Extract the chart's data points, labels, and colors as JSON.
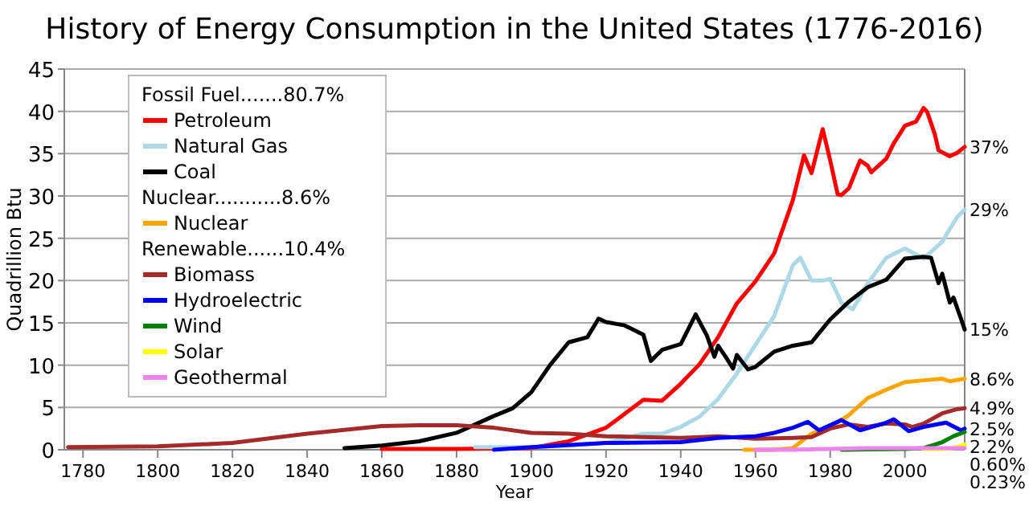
{
  "chart_data": {
    "type": "line",
    "title": "History of Energy Consumption in the United States (1776-2016)",
    "xlabel": "Year",
    "ylabel": "Quadrillion Btu",
    "xlim": [
      1775,
      2016
    ],
    "xticks": [
      1780,
      1800,
      1820,
      1840,
      1860,
      1880,
      1900,
      1920,
      1940,
      1960,
      1980,
      2000
    ],
    "ylim": [
      0,
      45
    ],
    "yticks": [
      0,
      5,
      10,
      15,
      20,
      25,
      30,
      35,
      40,
      45
    ],
    "grid": "y",
    "legend": "top left",
    "marker": "none",
    "line_style": "solid",
    "series": [
      {
        "name": "Petroleum",
        "color": "#ff0000",
        "x": [
          1860,
          1880,
          1900,
          1910,
          1920,
          1930,
          1935,
          1940,
          1945,
          1950,
          1955,
          1960,
          1965,
          1970,
          1973,
          1975,
          1978,
          1980,
          1982,
          1983,
          1985,
          1988,
          1990,
          1991,
          1995,
          1997,
          2000,
          2003,
          2005,
          2006,
          2008,
          2009,
          2012,
          2014,
          2016
        ],
        "values": [
          0.1,
          0.1,
          0.2,
          1,
          2.6,
          5.9,
          5.8,
          7.8,
          10.1,
          13.3,
          17.3,
          19.9,
          23.2,
          29.5,
          34.8,
          32.7,
          37.9,
          34.2,
          30.2,
          30.1,
          30.9,
          34.2,
          33.6,
          32.8,
          34.4,
          36.2,
          38.3,
          38.8,
          40.4,
          39.9,
          37.3,
          35.4,
          34.7,
          35.1,
          35.8
        ]
      },
      {
        "name": "Natural Gas",
        "color": "#add8e6",
        "x": [
          1885,
          1900,
          1910,
          1920,
          1930,
          1935,
          1940,
          1945,
          1950,
          1955,
          1960,
          1965,
          1970,
          1972,
          1975,
          1978,
          1980,
          1983,
          1986,
          1990,
          1995,
          2000,
          2005,
          2008,
          2010,
          2012,
          2014,
          2016
        ],
        "values": [
          0.3,
          0.3,
          0.5,
          0.8,
          1.9,
          1.9,
          2.7,
          3.9,
          6.0,
          9.0,
          12.4,
          15.8,
          21.8,
          22.7,
          20,
          20,
          20.2,
          17.4,
          16.6,
          19.6,
          22.7,
          23.8,
          22.6,
          23.8,
          24.6,
          26.1,
          27.5,
          28.4
        ]
      },
      {
        "name": "Coal",
        "color": "#000000",
        "x": [
          1850,
          1860,
          1870,
          1880,
          1890,
          1895,
          1900,
          1905,
          1910,
          1915,
          1918,
          1920,
          1925,
          1930,
          1932,
          1935,
          1940,
          1944,
          1947,
          1949,
          1950,
          1952,
          1954,
          1955,
          1958,
          1960,
          1965,
          1970,
          1975,
          1980,
          1985,
          1990,
          1995,
          2000,
          2005,
          2007,
          2009,
          2010,
          2012,
          2013,
          2015,
          2016
        ],
        "values": [
          0.2,
          0.5,
          1.0,
          2.0,
          4.0,
          4.9,
          6.8,
          10,
          12.7,
          13.3,
          15.5,
          15.1,
          14.7,
          13.6,
          10.5,
          11.8,
          12.5,
          16,
          13.5,
          11,
          12.3,
          11,
          9.6,
          11.2,
          9.5,
          9.8,
          11.6,
          12.3,
          12.7,
          15.4,
          17.5,
          19.2,
          20.1,
          22.6,
          22.8,
          22.7,
          19.7,
          20.8,
          17.4,
          18,
          15.5,
          14.2
        ]
      },
      {
        "name": "Nuclear",
        "color": "#ffa500",
        "x": [
          1957,
          1965,
          1970,
          1975,
          1980,
          1985,
          1990,
          1995,
          2000,
          2005,
          2010,
          2012,
          2016
        ],
        "values": [
          0,
          0,
          0.2,
          1.9,
          2.7,
          4.1,
          6.1,
          7.1,
          8.0,
          8.2,
          8.4,
          8.1,
          8.4
        ]
      },
      {
        "name": "Biomass",
        "color": "#a52a2a",
        "x": [
          1776,
          1800,
          1820,
          1840,
          1860,
          1870,
          1880,
          1890,
          1900,
          1910,
          1920,
          1930,
          1940,
          1950,
          1960,
          1970,
          1975,
          1980,
          1985,
          1990,
          1995,
          2000,
          2002,
          2005,
          2010,
          2014,
          2016
        ],
        "values": [
          0.3,
          0.4,
          0.8,
          1.9,
          2.8,
          2.9,
          2.9,
          2.6,
          2.0,
          1.9,
          1.6,
          1.5,
          1.4,
          1.6,
          1.3,
          1.4,
          1.5,
          2.5,
          3.0,
          2.7,
          3.1,
          3.0,
          2.7,
          3.1,
          4.3,
          4.8,
          4.9
        ]
      },
      {
        "name": "Hydroelectric",
        "color": "#0000ff",
        "x": [
          1890,
          1900,
          1920,
          1940,
          1950,
          1960,
          1965,
          1970,
          1974,
          1977,
          1983,
          1988,
          1995,
          1997,
          2001,
          2005,
          2011,
          2015,
          2016
        ],
        "values": [
          0,
          0.3,
          0.8,
          0.9,
          1.4,
          1.6,
          2.0,
          2.6,
          3.3,
          2.3,
          3.5,
          2.3,
          3.2,
          3.6,
          2.2,
          2.7,
          3.2,
          2.3,
          2.5
        ]
      },
      {
        "name": "Wind",
        "color": "#008000",
        "x": [
          1983,
          2000,
          2005,
          2008,
          2010,
          2013,
          2016
        ],
        "values": [
          0,
          0.1,
          0.2,
          0.6,
          0.9,
          1.6,
          2.1
        ]
      },
      {
        "name": "Solar",
        "color": "#ffff00",
        "x": [
          2005,
          2010,
          2013,
          2016
        ],
        "values": [
          0.1,
          0.1,
          0.2,
          0.6
        ]
      },
      {
        "name": "Geothermal",
        "color": "#ee82ee",
        "x": [
          1960,
          1970,
          1980,
          1990,
          2000,
          2010,
          2016
        ],
        "values": [
          0,
          0,
          0.1,
          0.2,
          0.2,
          0.2,
          0.2
        ]
      }
    ],
    "annotations": [
      "Fossil Fuel.......80.7%",
      "Nuclear...........8.6%",
      "Renewable......10.4%",
      "37%",
      "29%",
      "15%",
      "8.6%",
      "4.9%",
      "2.5%",
      "2.2%",
      "0.60%",
      "0.23%"
    ]
  }
}
